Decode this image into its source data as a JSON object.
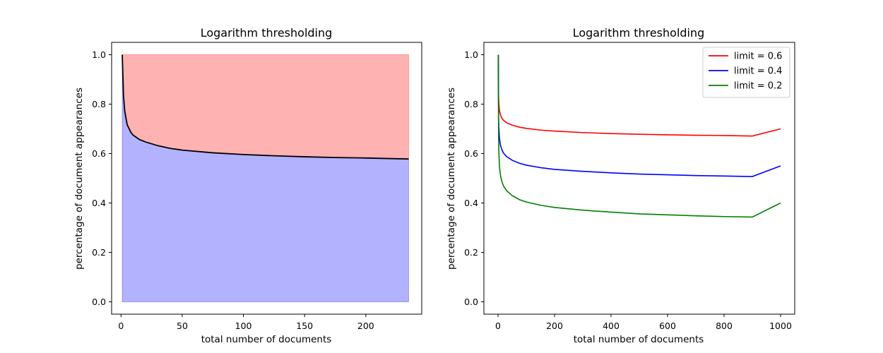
{
  "chart_data": [
    {
      "type": "area",
      "title": "Logarithm thresholding",
      "xlabel": "total number of documents",
      "ylabel": "percentage of document appearances",
      "xlim": [
        -7.7,
        245.7
      ],
      "ylim": [
        -0.05,
        1.05
      ],
      "xticks": [
        0,
        50,
        100,
        150,
        200
      ],
      "yticks": [
        0.0,
        0.2,
        0.4,
        0.6,
        0.8,
        1.0
      ],
      "grid": false,
      "curve": {
        "x": [
          1,
          2,
          3,
          5,
          8,
          10,
          15,
          20,
          30,
          40,
          50,
          75,
          100,
          125,
          150,
          175,
          200,
          235
        ],
        "y": [
          1.0,
          0.835,
          0.772,
          0.717,
          0.686,
          0.674,
          0.657,
          0.647,
          0.632,
          0.621,
          0.614,
          0.603,
          0.596,
          0.591,
          0.587,
          0.584,
          0.582,
          0.578
        ],
        "color": "#000000"
      },
      "fill_above": {
        "color": "#ff0000",
        "alpha": 0.3,
        "upper": 1.0
      },
      "fill_below": {
        "color": "#0000ff",
        "alpha": 0.3,
        "lower": 0.0
      }
    },
    {
      "type": "line",
      "title": "Logarithm thresholding",
      "xlabel": "total number of documents",
      "ylabel": "percentage of document appearances",
      "xlim": [
        -50,
        1050
      ],
      "ylim": [
        -0.05,
        1.05
      ],
      "xticks": [
        0,
        200,
        400,
        600,
        800,
        1000
      ],
      "yticks": [
        0.0,
        0.2,
        0.4,
        0.6,
        0.8,
        1.0
      ],
      "grid": false,
      "legend": "top-right",
      "x": [
        1,
        2,
        3,
        5,
        8,
        10,
        15,
        20,
        30,
        50,
        75,
        100,
        150,
        200,
        300,
        400,
        500,
        600,
        700,
        800,
        900,
        1000
      ],
      "series": [
        {
          "name": "limit = 0.6",
          "color": "#ff0000",
          "values": [
            1.0,
            0.832,
            0.802,
            0.776,
            0.759,
            0.752,
            0.741,
            0.734,
            0.725,
            0.715,
            0.707,
            0.702,
            0.695,
            0.691,
            0.685,
            0.681,
            0.678,
            0.676,
            0.674,
            0.673,
            0.671,
            0.7
          ]
        },
        {
          "name": "limit = 0.4",
          "color": "#0000ff",
          "values": [
            1.0,
            0.748,
            0.703,
            0.664,
            0.638,
            0.628,
            0.612,
            0.601,
            0.588,
            0.573,
            0.561,
            0.553,
            0.543,
            0.536,
            0.528,
            0.522,
            0.517,
            0.514,
            0.511,
            0.509,
            0.507,
            0.55
          ]
        },
        {
          "name": "limit = 0.2",
          "color": "#008000",
          "values": [
            1.0,
            0.664,
            0.604,
            0.552,
            0.518,
            0.504,
            0.482,
            0.468,
            0.45,
            0.43,
            0.414,
            0.404,
            0.391,
            0.382,
            0.371,
            0.363,
            0.356,
            0.352,
            0.348,
            0.345,
            0.343,
            0.4
          ]
        }
      ]
    }
  ]
}
